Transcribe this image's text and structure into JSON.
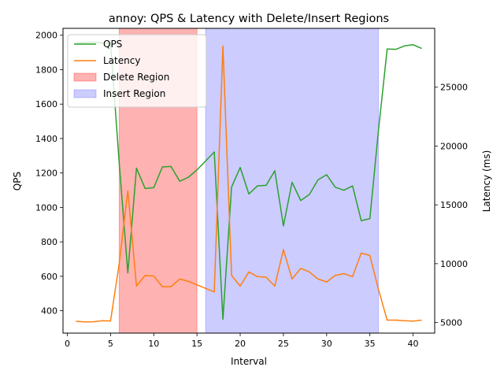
{
  "chart_data": {
    "type": "line",
    "title": "annoy: QPS & Latency with Delete/Insert Regions",
    "xlabel": "Interval",
    "ylabel_left": "QPS",
    "ylabel_right": "Latency (ms)",
    "xlim": [
      -0.5,
      42.5
    ],
    "ylim_left": [
      270,
      2040
    ],
    "ylim_right": [
      4100,
      30000
    ],
    "xticks": [
      0,
      5,
      10,
      15,
      20,
      25,
      30,
      35,
      40
    ],
    "yticks_left": [
      400,
      600,
      800,
      1000,
      1200,
      1400,
      1600,
      1800,
      2000
    ],
    "yticks_right": [
      5000,
      10000,
      15000,
      20000,
      25000
    ],
    "legend_position": "top-left",
    "grid": false,
    "regions": [
      {
        "name": "Delete Region",
        "x_start": 6,
        "x_end": 15,
        "color": "#ff0000",
        "alpha": 0.3
      },
      {
        "name": "Insert Region",
        "x_start": 16,
        "x_end": 36,
        "color": "#0000ff",
        "alpha": 0.2
      }
    ],
    "series": [
      {
        "name": "QPS",
        "axis": "left",
        "color": "#2ca02c",
        "x": [
          1,
          2,
          3,
          4,
          5,
          6,
          7,
          8,
          9,
          10,
          11,
          12,
          13,
          14,
          15,
          16,
          17,
          18,
          19,
          20,
          21,
          22,
          23,
          24,
          25,
          26,
          27,
          28,
          29,
          30,
          31,
          32,
          33,
          34,
          35,
          36,
          37,
          38,
          39,
          40,
          41
        ],
        "y": [
          1955,
          1958,
          1960,
          1955,
          1955,
          1260,
          620,
          1228,
          1110,
          1115,
          1235,
          1238,
          1152,
          1175,
          1218,
          1270,
          1322,
          350,
          1118,
          1232,
          1078,
          1125,
          1128,
          1213,
          893,
          1146,
          1040,
          1075,
          1160,
          1190,
          1117,
          1100,
          1125,
          923,
          935,
          1450,
          1920,
          1918,
          1938,
          1945,
          1923
        ]
      },
      {
        "name": "Latency",
        "axis": "right",
        "color": "#ff7f0e",
        "x": [
          1,
          2,
          3,
          4,
          5,
          6,
          7,
          8,
          9,
          10,
          11,
          12,
          13,
          14,
          15,
          16,
          17,
          18,
          19,
          20,
          21,
          22,
          23,
          24,
          25,
          26,
          27,
          28,
          29,
          30,
          31,
          32,
          33,
          34,
          35,
          36,
          37,
          38,
          39,
          40,
          41
        ],
        "y": [
          5100,
          5050,
          5060,
          5150,
          5130,
          10000,
          16200,
          8100,
          9000,
          8950,
          8050,
          8050,
          8700,
          8500,
          8200,
          7900,
          7600,
          28500,
          9000,
          8100,
          9300,
          8900,
          8850,
          8100,
          11200,
          8700,
          9600,
          9300,
          8700,
          8450,
          9000,
          9150,
          8900,
          10900,
          10700,
          7800,
          5200,
          5200,
          5150,
          5120,
          5200
        ]
      }
    ]
  }
}
